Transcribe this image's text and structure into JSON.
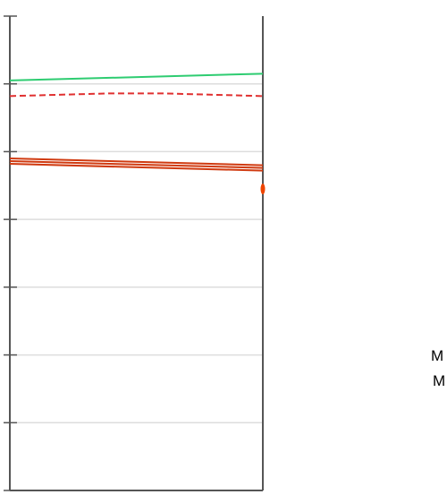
{
  "chart_data": {
    "type": "line",
    "x": [
      0,
      1
    ],
    "ylim": [
      0,
      7
    ],
    "y_gridlines": [
      1,
      2,
      3,
      4,
      5,
      6
    ],
    "grid": true,
    "series": [
      {
        "values": [
          6.05,
          6.15
        ],
        "color": "#2ecc71",
        "style": "solid"
      },
      {
        "values": [
          5.82,
          5.86,
          5.86,
          5.82
        ],
        "x": [
          0,
          0.4,
          0.6,
          1
        ],
        "color": "#e03030",
        "style": "dashed"
      },
      {
        "values": [
          4.9,
          4.8
        ],
        "color": "#d03a10",
        "style": "solid"
      },
      {
        "values": [
          4.86,
          4.76
        ],
        "color": "#d03a10",
        "style": "solid"
      },
      {
        "values": [
          4.82,
          4.72
        ],
        "color": "#d03a10",
        "style": "solid"
      }
    ],
    "points": [
      {
        "x": 1,
        "y": 4.45,
        "color": "#ee4400"
      }
    ],
    "right_labels": [
      "M",
      "M"
    ]
  }
}
